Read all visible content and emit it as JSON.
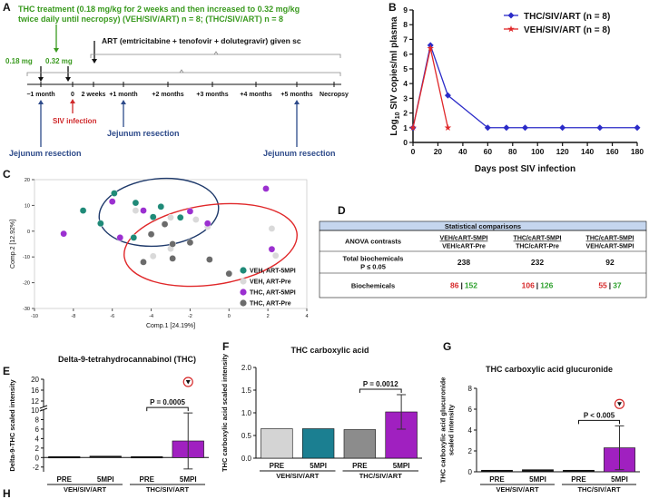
{
  "timeline": {
    "panel": "A",
    "treatment": [
      "THC treatment (0.18 mg/kg for 2 weeks and then increased to 0.32 mg/kg",
      "twice daily until necropsy) (VEH/SIV/ART) n = 8; (THC/SIV/ART) n = 8"
    ],
    "art": "ART (emtricitabine + tenofovir + dolutegravir) given sc",
    "doses": [
      "0.18 mg",
      "0.32 mg"
    ],
    "points": [
      "−1 month",
      "0",
      "2 weeks",
      "+1 month",
      "+2 months",
      "+3 months",
      "+4 months",
      "+5 months",
      "Necropsy"
    ],
    "infection": "SIV infection",
    "resection": [
      "Jejunum resection",
      "Jejunum resection",
      "Jejunum resection"
    ]
  },
  "chart_data": [
    {
      "type": "line",
      "panel": "B",
      "xlabel": "Days post SIV infection",
      "ylabel": [
        "Log",
        "10",
        " SIV copies/ml plasma"
      ],
      "xlim": [
        0,
        180
      ],
      "xticks": [
        0,
        20,
        40,
        60,
        80,
        100,
        120,
        140,
        160,
        180
      ],
      "ylim": [
        0,
        9
      ],
      "yticks": [
        0,
        1,
        2,
        3,
        4,
        5,
        6,
        7,
        8,
        9
      ],
      "legend": "upper right",
      "series": [
        {
          "name": "THC/SIV/ART (n = 8)",
          "color": "#2b2bc8",
          "marker": "diamond",
          "x": [
            0,
            14,
            28,
            60,
            75,
            90,
            120,
            150,
            180
          ],
          "values": [
            1,
            6.6,
            3.2,
            1,
            1,
            1,
            1,
            1,
            1
          ]
        },
        {
          "name": "VEH/SIV/ART (n = 8)",
          "color": "#e0282a",
          "marker": "star",
          "x": [
            0,
            14,
            28
          ],
          "values": [
            1,
            6.4,
            1
          ]
        }
      ]
    },
    {
      "type": "scatter",
      "panel": "C",
      "xlabel": "Comp.1 [24.19%]",
      "ylabel": "Comp.2 [12.92%]",
      "xlim": [
        -10,
        4
      ],
      "xticks": [
        -10,
        -8,
        -6,
        -4,
        -2,
        0,
        2,
        4
      ],
      "ylim": [
        -30,
        20
      ],
      "yticks": [
        -30,
        -20,
        -10,
        0,
        10,
        20
      ],
      "legend": "lower right",
      "series": [
        {
          "name": "VEH, ART-5MPI",
          "color": "#1f8a78",
          "x": [
            -7.5,
            -5.9,
            -4.8,
            -6.6,
            -3.9,
            -3.5,
            -4.9,
            -2.5
          ],
          "values": [
            8,
            14.7,
            11,
            3,
            5.5,
            9.5,
            -2.5,
            5.3
          ]
        },
        {
          "name": "VEH, ART-Pre",
          "color": "#d9d9d9",
          "x": [
            -4.8,
            -3,
            -1.7,
            -3.9,
            -3,
            2.2,
            2.4,
            -1.1
          ],
          "values": [
            8,
            5.3,
            4.5,
            -9.7,
            -6.8,
            1,
            -9.5,
            1.7
          ]
        },
        {
          "name": "THC, ART-5MPI",
          "color": "#9b30d0",
          "x": [
            -8.5,
            -6,
            -5.6,
            -4.4,
            -1.1,
            -2,
            1.9,
            2.2
          ],
          "values": [
            -1,
            11.5,
            -2.5,
            8,
            3,
            7.7,
            16.5,
            -7
          ]
        },
        {
          "name": "THC, ART-Pre",
          "color": "#6b6b6b",
          "x": [
            -4,
            -3.3,
            -2.9,
            -4.4,
            -2,
            -1,
            0,
            -2.9
          ],
          "values": [
            -1.2,
            2.7,
            -5,
            -12,
            -4.4,
            -11,
            -16.5,
            -10.6
          ]
        }
      ]
    },
    {
      "type": "bar",
      "panel": "E",
      "title": "Delta-9-tetrahydrocannabinol (THC)",
      "ylabel": [
        "Delta-9-THC scaled intensity"
      ],
      "categories": [
        "PRE",
        "5MPI",
        "PRE",
        "5MPI"
      ],
      "groups": [
        "VEH/SIV/ART",
        "THC/SIV/ART"
      ],
      "values": [
        0.2,
        0.3,
        0.2,
        3.5
      ],
      "errors": [
        null,
        null,
        null,
        5.9
      ],
      "outliers": [
        null,
        null,
        null,
        19
      ],
      "colors": [
        "#111111",
        "#111111",
        "#111111",
        "#a020c0"
      ],
      "ylim": [
        -3,
        20
      ],
      "ybreak": 10,
      "yticks": [
        -2,
        0,
        2,
        4,
        6,
        8,
        10,
        12,
        16,
        20
      ],
      "annotation": "P = 0.0005"
    },
    {
      "type": "bar",
      "panel": "F",
      "title": "THC carboxylic acid",
      "ylabel": [
        "THC carboxylic acid scaled intensity"
      ],
      "categories": [
        "PRE",
        "5MPI",
        "PRE",
        "5MPI"
      ],
      "groups": [
        "VEH/SIV/ART",
        "THC/SIV/ART"
      ],
      "values": [
        0.65,
        0.65,
        0.63,
        1.02
      ],
      "errors": [
        null,
        null,
        null,
        0.38
      ],
      "colors": [
        "#d4d4d4",
        "#1b7f91",
        "#8c8c8c",
        "#a020c0"
      ],
      "ylim": [
        0,
        2
      ],
      "yticks": [
        {
          "value": 0,
          "label": "0.0"
        },
        {
          "value": 0.5,
          "label": "0.5"
        },
        {
          "value": 1,
          "label": "1.0"
        },
        {
          "value": 1.5,
          "label": "1.5"
        },
        {
          "value": 2,
          "label": "2.0"
        }
      ],
      "annotation": "P = 0.0012"
    },
    {
      "type": "bar",
      "panel": "G",
      "title": "THC carboxylic acid glucuronide",
      "ylabel": [
        "THC carboxylic acid glucuronide",
        "scaled intensity"
      ],
      "categories": [
        "PRE",
        "5MPI",
        "PRE",
        "5MPI"
      ],
      "groups": [
        "VEH/SIV/ART",
        "THC/SIV/ART"
      ],
      "values": [
        0.15,
        0.2,
        0.15,
        2.3
      ],
      "errors": [
        null,
        null,
        null,
        2.1
      ],
      "outliers": [
        null,
        null,
        null,
        6.5
      ],
      "colors": [
        "#111111",
        "#111111",
        "#111111",
        "#a020c0"
      ],
      "ylim": [
        0,
        8
      ],
      "yticks": [
        0,
        2,
        4,
        6,
        8
      ],
      "annotation": "P < 0.005"
    }
  ],
  "table": {
    "panel": "D",
    "title": "Statistical comparisons",
    "header": [
      "ANOVA contrasts",
      [
        "VEH/cART-5MPI",
        "VEH/cART-Pre"
      ],
      [
        "THC/cART-5MPI",
        "THC/cART-Pre"
      ],
      [
        "THC/cART-5MPI",
        "VEH/cART-5MPI"
      ]
    ],
    "rows": [
      {
        "label": [
          "Total biochemicals",
          "P ≤ 0.05"
        ],
        "cells": [
          238,
          232,
          92
        ]
      },
      {
        "label": [
          "Biochemicals"
        ],
        "cells": [
          [
            86,
            152
          ],
          [
            106,
            126
          ],
          [
            55,
            37
          ]
        ]
      }
    ],
    "separator": "|",
    "colors": [
      "#d62728",
      "#2ca02c"
    ]
  },
  "panel_h": {
    "panel": "H"
  }
}
